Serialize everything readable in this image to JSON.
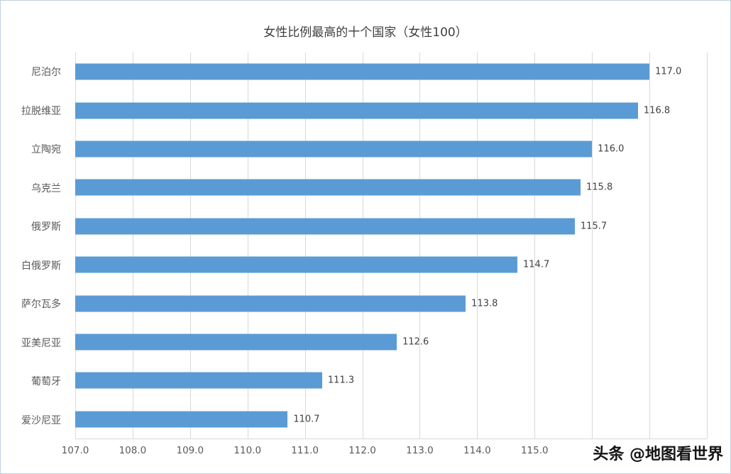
{
  "watermark": "头条 @地图看世界",
  "chart_data": {
    "type": "bar",
    "orientation": "horizontal",
    "title": "女性比例最高的十个国家（女性100）",
    "categories": [
      "尼泊尔",
      "拉脱维亚",
      "立陶宛",
      "乌克兰",
      "俄罗斯",
      "白俄罗斯",
      "萨尔瓦多",
      "亚美尼亚",
      "葡萄牙",
      "爱沙尼亚"
    ],
    "values": [
      117.0,
      116.8,
      116.0,
      115.8,
      115.7,
      114.7,
      113.8,
      112.6,
      111.3,
      110.7
    ],
    "value_labels": [
      "117.0",
      "116.8",
      "116.0",
      "115.8",
      "115.7",
      "114.7",
      "113.8",
      "112.6",
      "111.3",
      "110.7"
    ],
    "xlim": [
      107,
      118
    ],
    "x_tick_values": [
      107,
      108,
      109,
      110,
      111,
      112,
      113,
      114,
      115
    ],
    "x_ticks": [
      "107.0",
      "108.0",
      "109.0",
      "110.0",
      "111.0",
      "112.0",
      "113.0",
      "114.0",
      "115.0"
    ],
    "grid": true,
    "legend": "none",
    "bar_color": "#5B9BD5",
    "xlabel": "",
    "ylabel": ""
  }
}
